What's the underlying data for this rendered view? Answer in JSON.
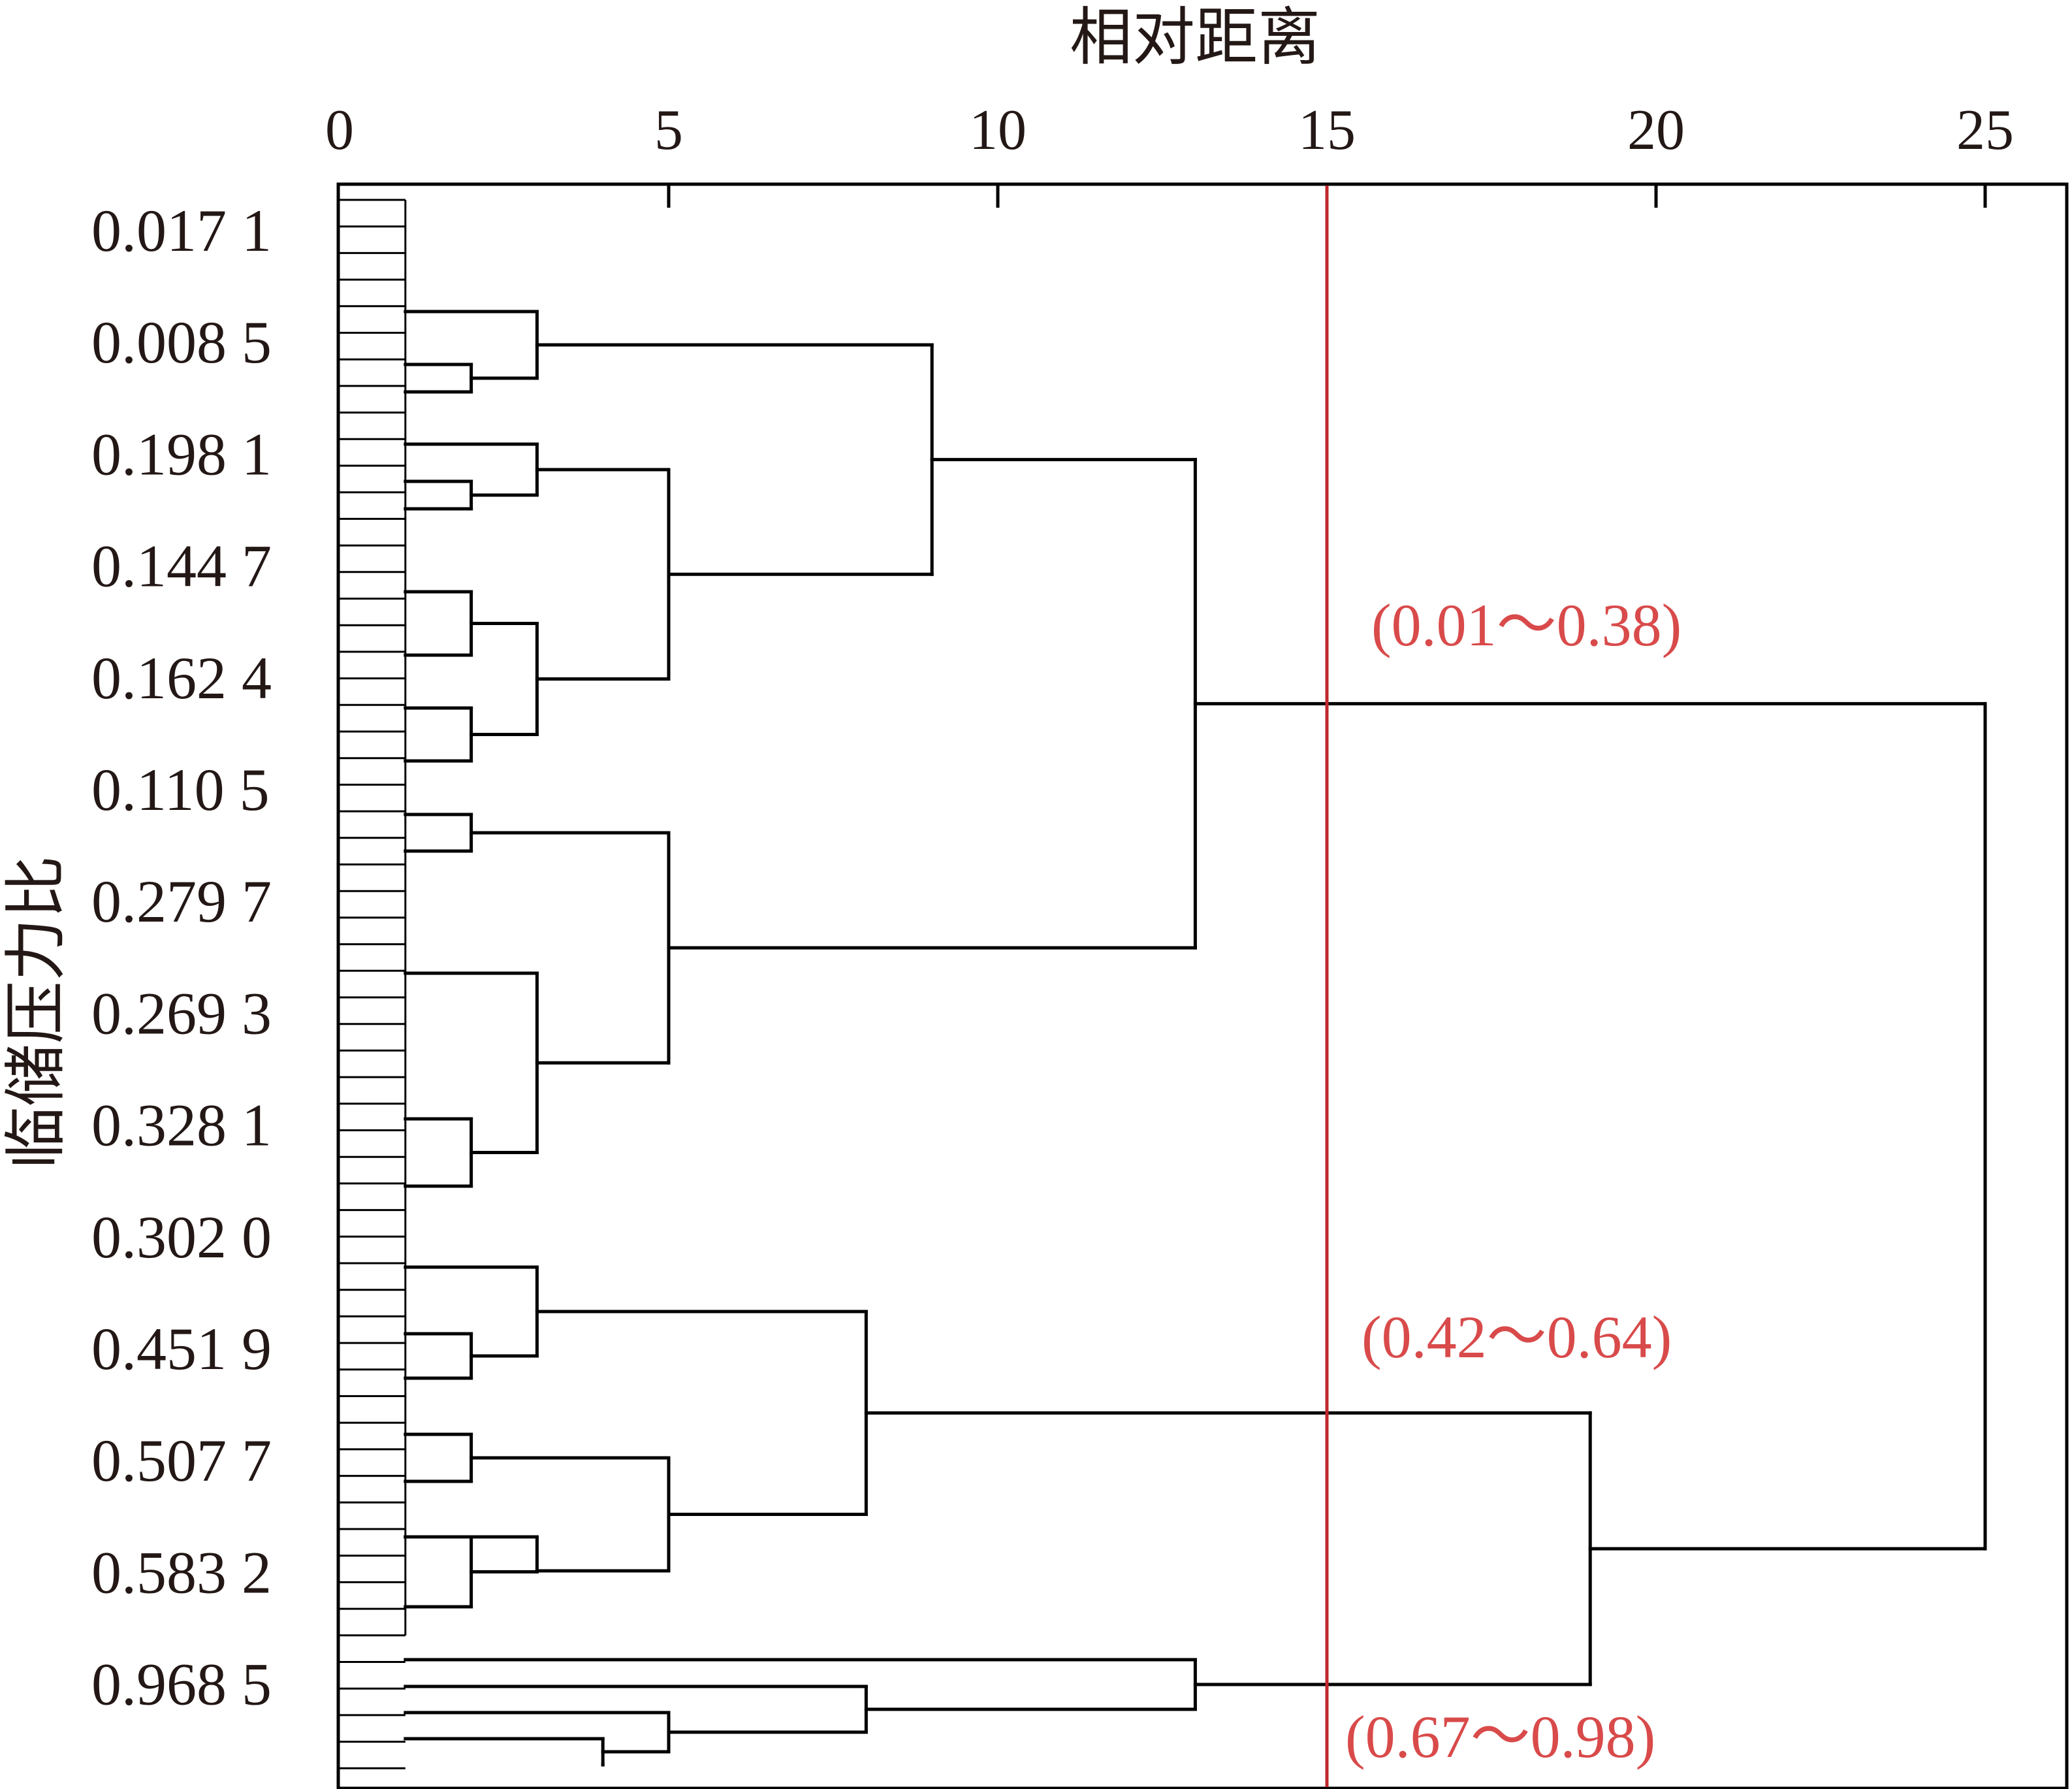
{
  "chart_data": {
    "type": "dendrogram",
    "x_axis_title": "相对距离",
    "y_axis_title": "临储压力比",
    "x_ticks": [
      0,
      5,
      10,
      15,
      20,
      25
    ],
    "xlim": [
      0,
      26.3
    ],
    "cut_line": {
      "value": 15,
      "color": "#c0282d"
    },
    "row_labels": [
      "0.017 1",
      "0.008 5",
      "0.198 1",
      "0.144 7",
      "0.162 4",
      "0.110 5",
      "0.279 7",
      "0.269 3",
      "0.328 1",
      "0.302 0",
      "0.451 9",
      "0.507 7",
      "0.583 2",
      "0.968 5"
    ],
    "leaf_count": 60,
    "clusters": [
      {
        "range_label": "(0.01～0.38)"
      },
      {
        "range_label": "(0.42～0.64)"
      },
      {
        "range_label": "(0.67～0.98)"
      }
    ]
  },
  "colors": {
    "range_label": "#d94a4a",
    "tree": "#000000",
    "text": "#231815"
  }
}
